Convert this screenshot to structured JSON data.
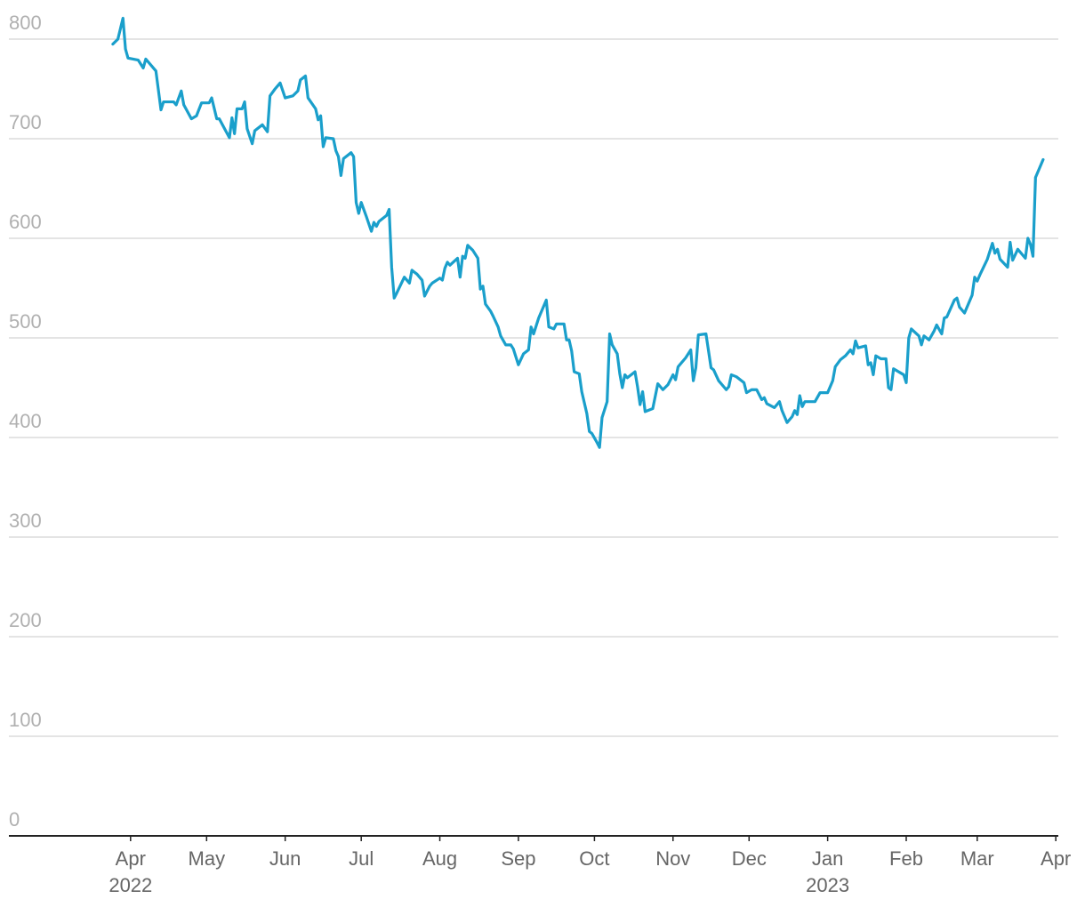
{
  "chart_data": {
    "type": "line",
    "color": "#1a9fcb",
    "grid": true,
    "xlim": [
      "2022-02-12",
      "2023-04-02"
    ],
    "ylim": [
      0,
      800
    ],
    "yticks": [
      0,
      100,
      200,
      300,
      400,
      500,
      600,
      700,
      800
    ],
    "xticks": [
      {
        "value": "2022-04-01",
        "label": "Apr 2022"
      },
      {
        "value": "2022-05-01",
        "label": "May"
      },
      {
        "value": "2022-06-01",
        "label": "Jun"
      },
      {
        "value": "2022-07-01",
        "label": "Jul"
      },
      {
        "value": "2022-08-01",
        "label": "Aug"
      },
      {
        "value": "2022-09-01",
        "label": "Sep"
      },
      {
        "value": "2022-10-01",
        "label": "Oct"
      },
      {
        "value": "2022-11-01",
        "label": "Nov"
      },
      {
        "value": "2022-12-01",
        "label": "Dec"
      },
      {
        "value": "2023-01-01",
        "label": "Jan 2023"
      },
      {
        "value": "2023-02-01",
        "label": "Feb"
      },
      {
        "value": "2023-03-01",
        "label": "Mar"
      },
      {
        "value": "2023-04-01",
        "label": "Apr"
      }
    ],
    "x": [
      "2022-03-25",
      "2022-03-27",
      "2022-03-29",
      "2022-03-30",
      "2022-03-31",
      "2022-04-04",
      "2022-04-06",
      "2022-04-07",
      "2022-04-11",
      "2022-04-13",
      "2022-04-14",
      "2022-04-18",
      "2022-04-19",
      "2022-04-21",
      "2022-04-22",
      "2022-04-25",
      "2022-04-27",
      "2022-04-29",
      "2022-05-02",
      "2022-05-03",
      "2022-05-05",
      "2022-05-06",
      "2022-05-10",
      "2022-05-11",
      "2022-05-12",
      "2022-05-13",
      "2022-05-15",
      "2022-05-16",
      "2022-05-17",
      "2022-05-19",
      "2022-05-20",
      "2022-05-23",
      "2022-05-25",
      "2022-05-26",
      "2022-05-28",
      "2022-05-30",
      "2022-06-01",
      "2022-06-04",
      "2022-06-06",
      "2022-06-07",
      "2022-06-09",
      "2022-06-10",
      "2022-06-13",
      "2022-06-14",
      "2022-06-15",
      "2022-06-16",
      "2022-06-17",
      "2022-06-20",
      "2022-06-21",
      "2022-06-22",
      "2022-06-23",
      "2022-06-24",
      "2022-06-27",
      "2022-06-28",
      "2022-06-29",
      "2022-06-30",
      "2022-07-01",
      "2022-07-03",
      "2022-07-05",
      "2022-07-06",
      "2022-07-07",
      "2022-07-08",
      "2022-07-11",
      "2022-07-12",
      "2022-07-13",
      "2022-07-14",
      "2022-07-15",
      "2022-07-18",
      "2022-07-20",
      "2022-07-21",
      "2022-07-22",
      "2022-07-23",
      "2022-07-25",
      "2022-07-26",
      "2022-07-28",
      "2022-07-29",
      "2022-08-01",
      "2022-08-02",
      "2022-08-03",
      "2022-08-04",
      "2022-08-05",
      "2022-08-08",
      "2022-08-09",
      "2022-08-10",
      "2022-08-11",
      "2022-08-12",
      "2022-08-14",
      "2022-08-16",
      "2022-08-17",
      "2022-08-18",
      "2022-08-19",
      "2022-08-21",
      "2022-08-22",
      "2022-08-24",
      "2022-08-25",
      "2022-08-27",
      "2022-08-29",
      "2022-08-30",
      "2022-09-01",
      "2022-09-03",
      "2022-09-05",
      "2022-09-06",
      "2022-09-07",
      "2022-09-09",
      "2022-09-12",
      "2022-09-13",
      "2022-09-15",
      "2022-09-16",
      "2022-09-19",
      "2022-09-20",
      "2022-09-21",
      "2022-09-22",
      "2022-09-23",
      "2022-09-25",
      "2022-09-26",
      "2022-09-28",
      "2022-09-29",
      "2022-09-30",
      "2022-10-02",
      "2022-10-03",
      "2022-10-04",
      "2022-10-06",
      "2022-10-07",
      "2022-10-08",
      "2022-10-10",
      "2022-10-11",
      "2022-10-12",
      "2022-10-13",
      "2022-10-14",
      "2022-10-17",
      "2022-10-18",
      "2022-10-19",
      "2022-10-20",
      "2022-10-21",
      "2022-10-24",
      "2022-10-26",
      "2022-10-27",
      "2022-10-28",
      "2022-10-30",
      "2022-11-01",
      "2022-11-02",
      "2022-11-03",
      "2022-11-06",
      "2022-11-08",
      "2022-11-09",
      "2022-11-10",
      "2022-11-11",
      "2022-11-14",
      "2022-11-16",
      "2022-11-17",
      "2022-11-19",
      "2022-11-21",
      "2022-11-22",
      "2022-11-23",
      "2022-11-24",
      "2022-11-26",
      "2022-11-28",
      "2022-11-29",
      "2022-11-30",
      "2022-12-02",
      "2022-12-04",
      "2022-12-06",
      "2022-12-07",
      "2022-12-08",
      "2022-12-11",
      "2022-12-13",
      "2022-12-14",
      "2022-12-16",
      "2022-12-18",
      "2022-12-19",
      "2022-12-20",
      "2022-12-21",
      "2022-12-22",
      "2022-12-23",
      "2022-12-27",
      "2022-12-29",
      "2023-01-01",
      "2023-01-03",
      "2023-01-04",
      "2023-01-06",
      "2023-01-08",
      "2023-01-10",
      "2023-01-11",
      "2023-01-12",
      "2023-01-13",
      "2023-01-16",
      "2023-01-17",
      "2023-01-18",
      "2023-01-19",
      "2023-01-20",
      "2023-01-22",
      "2023-01-24",
      "2023-01-25",
      "2023-01-26",
      "2023-01-27",
      "2023-01-31",
      "2023-02-01",
      "2023-02-02",
      "2023-02-03",
      "2023-02-06",
      "2023-02-07",
      "2023-02-08",
      "2023-02-10",
      "2023-02-12",
      "2023-02-13",
      "2023-02-15",
      "2023-02-16",
      "2023-02-17",
      "2023-02-20",
      "2023-02-21",
      "2023-02-22",
      "2023-02-24",
      "2023-02-27",
      "2023-02-28",
      "2023-03-01",
      "2023-03-02",
      "2023-03-05",
      "2023-03-07",
      "2023-03-08",
      "2023-03-09",
      "2023-03-10",
      "2023-03-13",
      "2023-03-14",
      "2023-03-15",
      "2023-03-17",
      "2023-03-20",
      "2023-03-21",
      "2023-03-22",
      "2023-03-23",
      "2023-03-24",
      "2023-03-27"
    ],
    "values": [
      795,
      800,
      821,
      790,
      781,
      779,
      771,
      780,
      768,
      729,
      737,
      737,
      734,
      748,
      734,
      720,
      723,
      736,
      736,
      741,
      720,
      720,
      701,
      721,
      705,
      730,
      730,
      737,
      710,
      695,
      708,
      714,
      707,
      743,
      750,
      756,
      741,
      743,
      748,
      759,
      763,
      741,
      730,
      719,
      723,
      692,
      701,
      700,
      688,
      682,
      663,
      680,
      686,
      682,
      636,
      625,
      636,
      622,
      607,
      616,
      612,
      617,
      623,
      629,
      571,
      540,
      545,
      561,
      555,
      568,
      566,
      564,
      558,
      542,
      552,
      555,
      560,
      558,
      570,
      576,
      573,
      580,
      561,
      582,
      580,
      593,
      588,
      580,
      549,
      552,
      534,
      527,
      522,
      511,
      502,
      493,
      493,
      489,
      473,
      484,
      488,
      511,
      504,
      520,
      538,
      511,
      509,
      514,
      514,
      498,
      498,
      487,
      466,
      464,
      446,
      424,
      406,
      404,
      395,
      390,
      420,
      436,
      504,
      493,
      484,
      464,
      450,
      463,
      460,
      466,
      451,
      433,
      446,
      426,
      429,
      454,
      451,
      448,
      453,
      463,
      458,
      471,
      480,
      488,
      457,
      470,
      503,
      504,
      470,
      468,
      457,
      451,
      448,
      451,
      463,
      461,
      457,
      455,
      445,
      448,
      448,
      438,
      440,
      434,
      430,
      436,
      427,
      415,
      421,
      427,
      423,
      442,
      431,
      436,
      436,
      445,
      445,
      457,
      471,
      478,
      482,
      488,
      484,
      497,
      490,
      492,
      473,
      475,
      463,
      482,
      479,
      479,
      450,
      448,
      469,
      463,
      455,
      500,
      509,
      502,
      493,
      502,
      498,
      507,
      513,
      504,
      520,
      521,
      538,
      540,
      531,
      525,
      543,
      561,
      557,
      563,
      579,
      595,
      585,
      589,
      579,
      571,
      596,
      578,
      589,
      580,
      600,
      594,
      582,
      661,
      679
    ]
  }
}
